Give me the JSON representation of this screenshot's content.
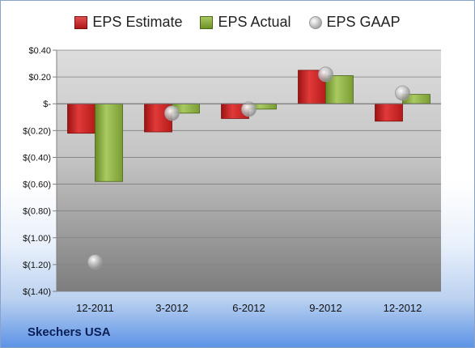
{
  "chart_data": {
    "type": "bar",
    "categories": [
      "12-2011",
      "3-2012",
      "6-2012",
      "9-2012",
      "12-2012"
    ],
    "series": [
      {
        "name": "EPS Estimate",
        "kind": "bar",
        "color": "#c81f1f",
        "values": [
          -0.22,
          -0.21,
          -0.11,
          0.25,
          -0.13
        ]
      },
      {
        "name": "EPS Actual",
        "kind": "bar",
        "color": "#8fb043",
        "values": [
          -0.58,
          -0.07,
          -0.04,
          0.21,
          0.07
        ]
      },
      {
        "name": "EPS GAAP",
        "kind": "marker",
        "color": "#b5b5b5",
        "values": [
          -1.18,
          -0.07,
          -0.04,
          0.22,
          0.08
        ]
      }
    ],
    "ylim": [
      -1.4,
      0.4
    ],
    "yticks": [
      0.4,
      0.2,
      0,
      -0.2,
      -0.4,
      -0.6,
      -0.8,
      -1.0,
      -1.2,
      -1.4
    ],
    "ytick_labels": [
      "$0.40",
      "$0.20",
      "$-",
      "$(0.20)",
      "$(0.40)",
      "$(0.60)",
      "$(0.80)",
      "$(1.00)",
      "$(1.20)",
      "$(1.40)"
    ],
    "grid": true,
    "legend_position": "top-center"
  },
  "company": "Skechers USA"
}
